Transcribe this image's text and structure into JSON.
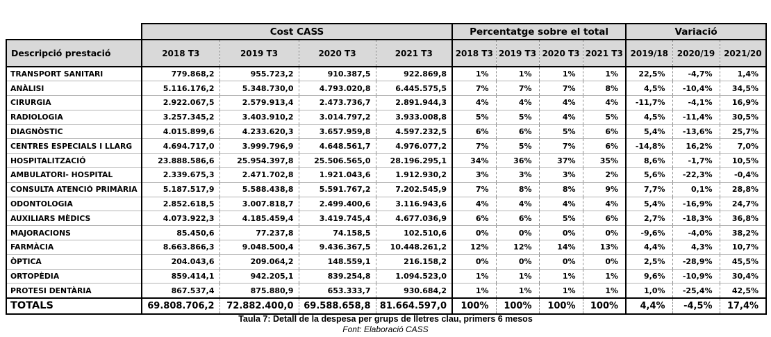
{
  "table": {
    "groups": [
      {
        "label": "Cost CASS",
        "span": 4
      },
      {
        "label": "Percentatge sobre el total",
        "span": 4
      },
      {
        "label": "Variació",
        "span": 3
      }
    ],
    "desc_header": "Descripció prestació",
    "columns": [
      "2018 T3",
      "2019 T3",
      "2020 T3",
      "2021 T3",
      "2018 T3",
      "2019 T3",
      "2020 T3",
      "2021 T3",
      "2019/18",
      "2020/19",
      "2021/20"
    ],
    "rows": [
      {
        "label": "TRANSPORT SANITARI",
        "cost": [
          "779.868,2",
          "955.723,2",
          "910.387,5",
          "922.869,8"
        ],
        "pct": [
          "1%",
          "1%",
          "1%",
          "1%"
        ],
        "var": [
          "22,5%",
          "-4,7%",
          "1,4%"
        ]
      },
      {
        "label": "ANÀLISI",
        "cost": [
          "5.116.176,2",
          "5.348.730,0",
          "4.793.020,8",
          "6.445.575,5"
        ],
        "pct": [
          "7%",
          "7%",
          "7%",
          "8%"
        ],
        "var": [
          "4,5%",
          "-10,4%",
          "34,5%"
        ]
      },
      {
        "label": "CIRURGIA",
        "cost": [
          "2.922.067,5",
          "2.579.913,4",
          "2.473.736,7",
          "2.891.944,3"
        ],
        "pct": [
          "4%",
          "4%",
          "4%",
          "4%"
        ],
        "var": [
          "-11,7%",
          "-4,1%",
          "16,9%"
        ]
      },
      {
        "label": "RADIOLOGIA",
        "cost": [
          "3.257.345,2",
          "3.403.910,2",
          "3.014.797,2",
          "3.933.008,8"
        ],
        "pct": [
          "5%",
          "5%",
          "4%",
          "5%"
        ],
        "var": [
          "4,5%",
          "-11,4%",
          "30,5%"
        ]
      },
      {
        "label": "DIAGNÒSTIC",
        "cost": [
          "4.015.899,6",
          "4.233.620,3",
          "3.657.959,8",
          "4.597.232,5"
        ],
        "pct": [
          "6%",
          "6%",
          "5%",
          "6%"
        ],
        "var": [
          "5,4%",
          "-13,6%",
          "25,7%"
        ]
      },
      {
        "label": "CENTRES ESPECIALS I LLARG",
        "cost": [
          "4.694.717,0",
          "3.999.796,9",
          "4.648.561,7",
          "4.976.077,2"
        ],
        "pct": [
          "7%",
          "5%",
          "7%",
          "6%"
        ],
        "var": [
          "-14,8%",
          "16,2%",
          "7,0%"
        ]
      },
      {
        "label": "HOSPITALITZACIÓ",
        "cost": [
          "23.888.586,6",
          "25.954.397,8",
          "25.506.565,0",
          "28.196.295,1"
        ],
        "pct": [
          "34%",
          "36%",
          "37%",
          "35%"
        ],
        "var": [
          "8,6%",
          "-1,7%",
          "10,5%"
        ]
      },
      {
        "label": "AMBULATORI- HOSPITAL",
        "cost": [
          "2.339.675,3",
          "2.471.702,8",
          "1.921.043,6",
          "1.912.930,2"
        ],
        "pct": [
          "3%",
          "3%",
          "3%",
          "2%"
        ],
        "var": [
          "5,6%",
          "-22,3%",
          "-0,4%"
        ]
      },
      {
        "label": "CONSULTA ATENCIÓ PRIMÀRIA",
        "cost": [
          "5.187.517,9",
          "5.588.438,8",
          "5.591.767,2",
          "7.202.545,9"
        ],
        "pct": [
          "7%",
          "8%",
          "8%",
          "9%"
        ],
        "var": [
          "7,7%",
          "0,1%",
          "28,8%"
        ]
      },
      {
        "label": "ODONTOLOGIA",
        "cost": [
          "2.852.618,5",
          "3.007.818,7",
          "2.499.400,6",
          "3.116.943,6"
        ],
        "pct": [
          "4%",
          "4%",
          "4%",
          "4%"
        ],
        "var": [
          "5,4%",
          "-16,9%",
          "24,7%"
        ]
      },
      {
        "label": "AUXILIARS MÈDICS",
        "cost": [
          "4.073.922,3",
          "4.185.459,4",
          "3.419.745,4",
          "4.677.036,9"
        ],
        "pct": [
          "6%",
          "6%",
          "5%",
          "6%"
        ],
        "var": [
          "2,7%",
          "-18,3%",
          "36,8%"
        ]
      },
      {
        "label": "MAJORACIONS",
        "cost": [
          "85.450,6",
          "77.237,8",
          "74.158,5",
          "102.510,6"
        ],
        "pct": [
          "0%",
          "0%",
          "0%",
          "0%"
        ],
        "var": [
          "-9,6%",
          "-4,0%",
          "38,2%"
        ]
      },
      {
        "label": "FARMÀCIA",
        "cost": [
          "8.663.866,3",
          "9.048.500,4",
          "9.436.367,5",
          "10.448.261,2"
        ],
        "pct": [
          "12%",
          "12%",
          "14%",
          "13%"
        ],
        "var": [
          "4,4%",
          "4,3%",
          "10,7%"
        ]
      },
      {
        "label": "ÒPTICA",
        "cost": [
          "204.043,6",
          "209.064,2",
          "148.559,1",
          "216.158,2"
        ],
        "pct": [
          "0%",
          "0%",
          "0%",
          "0%"
        ],
        "var": [
          "2,5%",
          "-28,9%",
          "45,5%"
        ]
      },
      {
        "label": "ORTOPÈDIA",
        "cost": [
          "859.414,1",
          "942.205,1",
          "839.254,8",
          "1.094.523,0"
        ],
        "pct": [
          "1%",
          "1%",
          "1%",
          "1%"
        ],
        "var": [
          "9,6%",
          "-10,9%",
          "30,4%"
        ]
      },
      {
        "label": "PROTESI DENTÀRIA",
        "cost": [
          "867.537,4",
          "875.880,9",
          "653.333,7",
          "930.684,2"
        ],
        "pct": [
          "1%",
          "1%",
          "1%",
          "1%"
        ],
        "var": [
          "1,0%",
          "-25,4%",
          "42,5%"
        ]
      }
    ],
    "totals": {
      "label": "TOTALS",
      "cost": [
        "69.808.706,2",
        "72.882.400,0",
        "69.588.658,8",
        "81.664.597,0"
      ],
      "pct": [
        "100%",
        "100%",
        "100%",
        "100%"
      ],
      "var": [
        "4,4%",
        "-4,5%",
        "17,4%"
      ]
    }
  },
  "caption": {
    "title": "Taula 7: Detall de la despesa per grups de lletres clau, primers 6 mesos",
    "source": "Font: Elaboració CASS"
  },
  "colors": {
    "header_bg": "#d9d9d9",
    "border_dark": "#000000",
    "row_line": "#b3b3b3",
    "dashed_line": "#8a8a8a"
  }
}
